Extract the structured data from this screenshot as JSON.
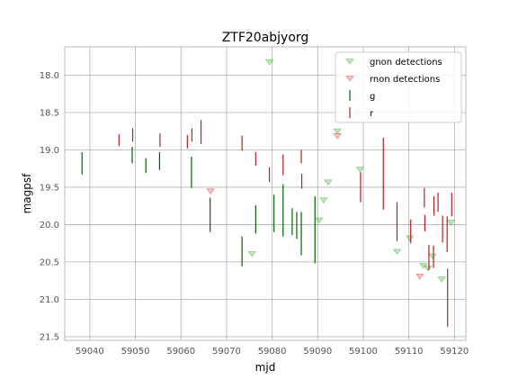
{
  "chart_data": {
    "type": "scatter",
    "title": "ZTF20abjyorg",
    "xlabel": "mjd",
    "ylabel": "magpsf",
    "xlim": [
      59034.5,
      59122.5
    ],
    "ylim": [
      21.55,
      17.62
    ],
    "y_inverted": true,
    "grid": true,
    "legend_position": "top-right",
    "xticks": [
      59040,
      59050,
      59060,
      59070,
      59080,
      59090,
      59100,
      59110,
      59120
    ],
    "yticks": [
      18.0,
      18.5,
      19.0,
      19.5,
      20.0,
      20.5,
      21.0,
      21.5
    ],
    "series": [
      {
        "name": "gnon detections",
        "kind": "upper_limit_marker",
        "color": "#2ca02c",
        "points": [
          {
            "x": 59079.4,
            "y": 17.82
          },
          {
            "x": 59075.6,
            "y": 20.39
          },
          {
            "x": 59090.3,
            "y": 19.94
          },
          {
            "x": 59091.3,
            "y": 19.67
          },
          {
            "x": 59092.3,
            "y": 19.43
          },
          {
            "x": 59094.3,
            "y": 18.75
          },
          {
            "x": 59099.3,
            "y": 19.26
          },
          {
            "x": 59107.4,
            "y": 20.36
          },
          {
            "x": 59110.2,
            "y": 20.18
          },
          {
            "x": 59113.2,
            "y": 20.55
          },
          {
            "x": 59114.2,
            "y": 20.58
          },
          {
            "x": 59115.2,
            "y": 20.42
          },
          {
            "x": 59117.2,
            "y": 20.73
          },
          {
            "x": 59119.2,
            "y": 19.97
          }
        ]
      },
      {
        "name": "rnon detections",
        "kind": "upper_limit_marker",
        "color": "#d62728",
        "points": [
          {
            "x": 59066.5,
            "y": 19.55
          },
          {
            "x": 59094.3,
            "y": 18.81
          },
          {
            "x": 59112.4,
            "y": 20.69
          }
        ]
      },
      {
        "name": "g",
        "kind": "error_bar",
        "color": "#006400",
        "points": [
          {
            "x": 59038.3,
            "y": 19.18,
            "err": 0.15
          },
          {
            "x": 59049.3,
            "y": 19.07,
            "err": 0.11
          },
          {
            "x": 59052.3,
            "y": 19.21,
            "err": 0.1
          },
          {
            "x": 59055.3,
            "y": 19.15,
            "err": 0.12
          },
          {
            "x": 59062.3,
            "y": 19.3,
            "err": 0.21
          },
          {
            "x": 59066.4,
            "y": 19.87,
            "err": 0.23
          },
          {
            "x": 59073.4,
            "y": 20.36,
            "err": 0.2
          },
          {
            "x": 59076.4,
            "y": 19.93,
            "err": 0.19
          },
          {
            "x": 59080.4,
            "y": 19.85,
            "err": 0.25
          },
          {
            "x": 59082.4,
            "y": 19.81,
            "err": 0.35
          },
          {
            "x": 59084.4,
            "y": 19.96,
            "err": 0.18
          },
          {
            "x": 59085.4,
            "y": 20.01,
            "err": 0.18
          },
          {
            "x": 59086.4,
            "y": 20.12,
            "err": 0.29
          },
          {
            "x": 59089.4,
            "y": 20.07,
            "err": 0.45
          }
        ]
      },
      {
        "name": "r",
        "kind": "error_bar",
        "color": "#b22222",
        "points": [
          {
            "x": 59046.4,
            "y": 18.87,
            "err": 0.08
          },
          {
            "x": 59049.4,
            "y": 18.8,
            "err": 0.09
          },
          {
            "x": 59055.4,
            "y": 18.87,
            "err": 0.09
          },
          {
            "x": 59061.4,
            "y": 18.89,
            "err": 0.09
          },
          {
            "x": 59062.4,
            "y": 18.8,
            "err": 0.09
          },
          {
            "x": 59064.4,
            "y": 18.76,
            "err": 0.16
          },
          {
            "x": 59073.4,
            "y": 18.91,
            "err": 0.1
          },
          {
            "x": 59076.4,
            "y": 19.12,
            "err": 0.09
          },
          {
            "x": 59079.4,
            "y": 19.33,
            "err": 0.1
          },
          {
            "x": 59082.4,
            "y": 19.2,
            "err": 0.14
          },
          {
            "x": 59086.4,
            "y": 19.09,
            "err": 0.09
          },
          {
            "x": 59086.5,
            "y": 19.42,
            "err": 0.1
          },
          {
            "x": 59099.4,
            "y": 19.5,
            "err": 0.2
          },
          {
            "x": 59104.4,
            "y": 19.32,
            "err": 0.48
          },
          {
            "x": 59107.4,
            "y": 19.96,
            "err": 0.26
          },
          {
            "x": 59110.4,
            "y": 20.09,
            "err": 0.16
          },
          {
            "x": 59113.4,
            "y": 19.64,
            "err": 0.13
          },
          {
            "x": 59113.5,
            "y": 19.98,
            "err": 0.11
          },
          {
            "x": 59114.4,
            "y": 20.44,
            "err": 0.17
          },
          {
            "x": 59115.4,
            "y": 20.43,
            "err": 0.15
          },
          {
            "x": 59115.5,
            "y": 19.75,
            "err": 0.13
          },
          {
            "x": 59116.4,
            "y": 19.7,
            "err": 0.13
          },
          {
            "x": 59117.4,
            "y": 20.06,
            "err": 0.18
          },
          {
            "x": 59118.4,
            "y": 20.13,
            "err": 0.24
          },
          {
            "x": 59118.5,
            "y": 20.98,
            "err": 0.39
          },
          {
            "x": 59119.4,
            "y": 19.73,
            "err": 0.16
          }
        ]
      }
    ]
  }
}
